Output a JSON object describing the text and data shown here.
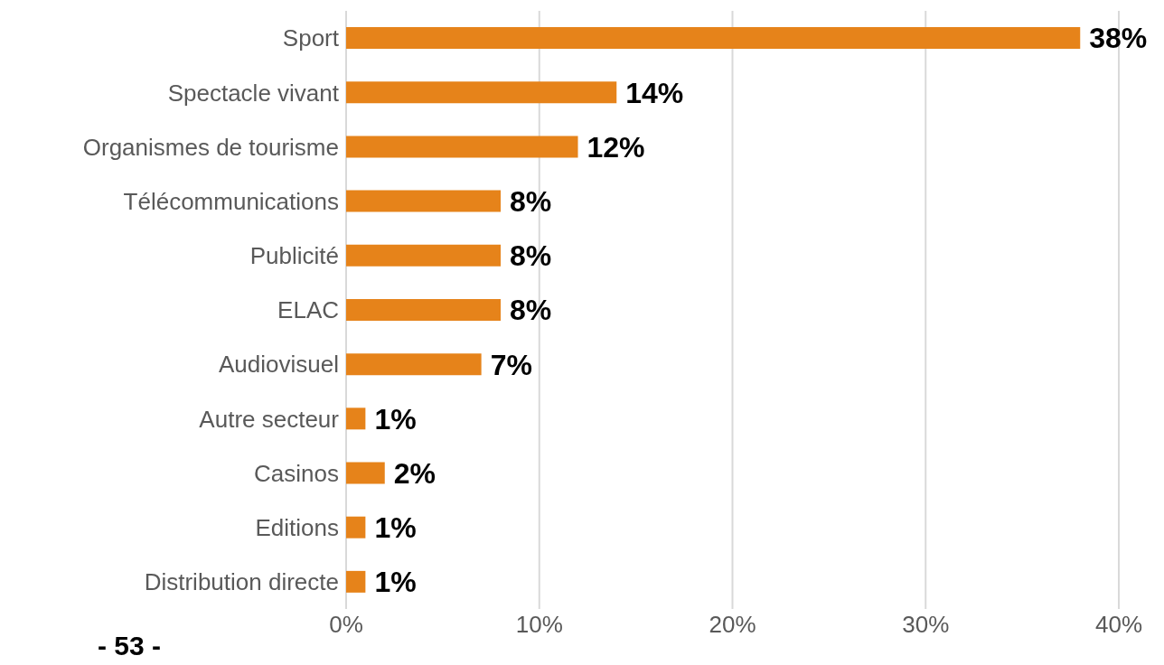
{
  "chart_data": {
    "type": "bar",
    "orientation": "horizontal",
    "categories": [
      "Sport",
      "Spectacle vivant",
      "Organismes de tourisme",
      "Télécommunications",
      "Publicité",
      "ELAC",
      "Audiovisuel",
      "Autre secteur",
      "Casinos",
      "Editions",
      "Distribution directe"
    ],
    "values": [
      38,
      14,
      12,
      8,
      8,
      8,
      7,
      1,
      2,
      1,
      1
    ],
    "value_labels": [
      "38%",
      "14%",
      "12%",
      "8%",
      "8%",
      "8%",
      "7%",
      "1%",
      "2%",
      "1%",
      "1%"
    ],
    "color": "#e6831a",
    "xlim": [
      0,
      40
    ],
    "xticks": [
      {
        "value": 0,
        "label": "0%"
      },
      {
        "value": 10,
        "label": "10%"
      },
      {
        "value": 20,
        "label": "20%"
      },
      {
        "value": 30,
        "label": "30%"
      },
      {
        "value": 40,
        "label": "40%"
      }
    ],
    "grid": "x",
    "annotations": [
      "- 53 -"
    ]
  }
}
